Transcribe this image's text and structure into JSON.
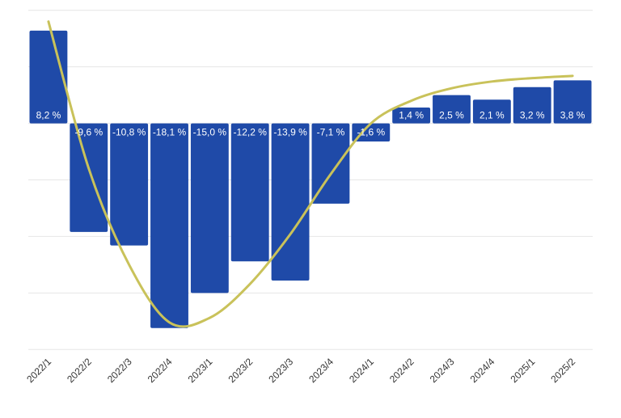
{
  "chart_data": {
    "type": "bar",
    "categories": [
      "2022/1",
      "2022/2",
      "2022/3",
      "2022/4",
      "2023/1",
      "2023/2",
      "2023/3",
      "2023/4",
      "2024/1",
      "2024/2",
      "2024/3",
      "2024/4",
      "2025/1",
      "2025/2"
    ],
    "values": [
      8.2,
      -9.6,
      -10.8,
      -18.1,
      -15.0,
      -12.2,
      -13.9,
      -7.1,
      -1.6,
      1.4,
      2.5,
      2.1,
      3.2,
      3.8
    ],
    "value_labels": [
      "8,2 %",
      "-9,6 %",
      "-10,8 %",
      "-18,1 %",
      "-15,0 %",
      "-12,2 %",
      "-13,9 %",
      "-7,1 %",
      "-1,6 %",
      "1,4 %",
      "2,5 %",
      "2,1 %",
      "3,2 %",
      "3,8 %"
    ],
    "trend_line": [
      9.0,
      -4.0,
      -12.5,
      -17.6,
      -17.2,
      -14.2,
      -9.8,
      -4.5,
      0.0,
      2.0,
      3.1,
      3.7,
      4.0,
      4.2
    ],
    "ylim": [
      -20,
      10
    ],
    "grid": true,
    "legend": "none",
    "title": "",
    "xlabel": "",
    "ylabel": "",
    "colors": {
      "bar": "#1f4aa8",
      "trend": "#c9c25a",
      "label_inside": "#ffffff",
      "label_outside": "#222222",
      "grid": "#e6e6e6"
    }
  }
}
